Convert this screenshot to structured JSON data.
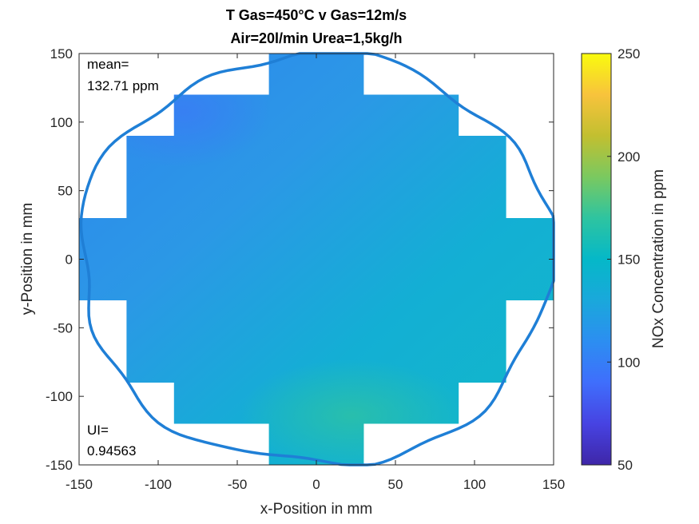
{
  "chart_data": {
    "type": "heatmap",
    "title_lines": [
      "T Gas=450°C v Gas=12m/s",
      "Air=20l/min Urea=1,5kg/h"
    ],
    "xlabel": "x-Position in mm",
    "ylabel": "y-Position in mm",
    "xlim": [
      -150,
      150
    ],
    "ylim": [
      -150,
      150
    ],
    "xticks": [
      -150,
      -100,
      -50,
      0,
      50,
      100,
      150
    ],
    "yticks": [
      -150,
      -100,
      -50,
      0,
      50,
      100,
      150
    ],
    "colorbar": {
      "label": "NOx Concentration in ppm",
      "range": [
        50,
        250
      ],
      "ticks": [
        50,
        100,
        150,
        200,
        250
      ],
      "colormap": "parula"
    },
    "annotations": {
      "mean_label": "mean=",
      "mean_value": "132.71 ppm",
      "ui_label": "UI=",
      "ui_value": "0.94563"
    },
    "measurement_region": {
      "description": "stepped cross",
      "rows": [
        {
          "y": [
            120,
            150
          ],
          "x": [
            -30,
            30
          ]
        },
        {
          "y": [
            90,
            120
          ],
          "x": [
            -90,
            90
          ]
        },
        {
          "y": [
            30,
            90
          ],
          "x": [
            -120,
            120
          ]
        },
        {
          "y": [
            -30,
            30
          ],
          "x": [
            -150,
            150
          ]
        },
        {
          "y": [
            -90,
            -30
          ],
          "x": [
            -120,
            120
          ]
        },
        {
          "y": [
            -120,
            -90
          ],
          "x": [
            -90,
            90
          ]
        },
        {
          "y": [
            -150,
            -120
          ],
          "x": [
            -30,
            30
          ]
        }
      ]
    },
    "field_samples": [
      {
        "x": -90,
        "y": 110,
        "value": 115
      },
      {
        "x": -120,
        "y": 60,
        "value": 118
      },
      {
        "x": -140,
        "y": 0,
        "value": 124
      },
      {
        "x": 110,
        "y": 60,
        "value": 138
      },
      {
        "x": 140,
        "y": 0,
        "value": 139
      },
      {
        "x": 0,
        "y": 0,
        "value": 131
      },
      {
        "x": 30,
        "y": -130,
        "value": 143
      },
      {
        "x": -60,
        "y": -100,
        "value": 138
      },
      {
        "x": 80,
        "y": -100,
        "value": 141
      }
    ],
    "boundary_outline": {
      "shape": "circle",
      "radius": 150,
      "color": "#1f7fd6"
    }
  }
}
